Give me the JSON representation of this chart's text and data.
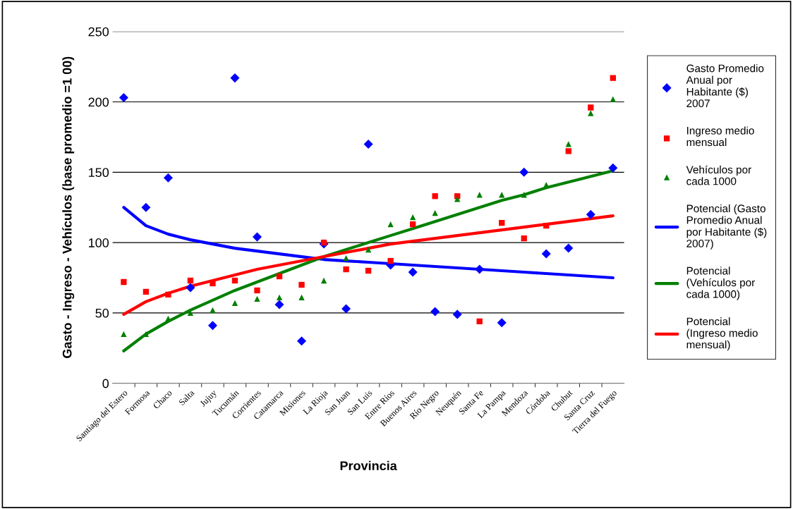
{
  "chart_data": {
    "type": "scatter",
    "xlabel": "Provincia",
    "ylabel": "Gasto - Ingreso - Vehículos (base promedio =1 00)",
    "categories": [
      "Santiago del Estero",
      "Formosa",
      "Chaco",
      "Salta",
      "Jujuy",
      "Tucumán",
      "Corrientes",
      "Catamarca",
      "Misiones",
      "La Rioja",
      "San Juan",
      "San Luis",
      "Entre Ríos",
      "Buenos Aires",
      "Río Negro",
      "Neuquén",
      "Santa Fe",
      "La Pampa",
      "Mendoza",
      "Córdoba",
      "Chubut",
      "Santa Cruz",
      "Tierra del Fuego"
    ],
    "ylim": [
      0,
      250
    ],
    "yticks": [
      0,
      50,
      100,
      150,
      200,
      250
    ],
    "grid": "y",
    "legend": "right",
    "series": [
      {
        "name": "Gasto Promedio Anual por Habitante ($) 2007",
        "marker": "diamond",
        "color": "#0000ff",
        "values": [
          203,
          125,
          146,
          68,
          41,
          217,
          104,
          56,
          30,
          99,
          53,
          170,
          84,
          79,
          51,
          49,
          81,
          43,
          150,
          92,
          96,
          120,
          153
        ]
      },
      {
        "name": "Ingreso medio mensual",
        "marker": "square",
        "color": "#ff0000",
        "values": [
          72,
          65,
          63,
          73,
          71,
          73,
          66,
          76,
          70,
          100,
          81,
          80,
          87,
          113,
          133,
          133,
          44,
          114,
          103,
          112,
          165,
          196,
          217
        ]
      },
      {
        "name": "Vehículos por cada 1000",
        "marker": "triangle",
        "color": "#008000",
        "values": [
          35,
          35,
          46,
          50,
          52,
          57,
          60,
          61,
          61,
          73,
          89,
          95,
          113,
          118,
          121,
          131,
          134,
          134,
          134,
          141,
          170,
          192,
          202
        ]
      },
      {
        "name": "Potencial (Gasto Promedio Anual por Habitante ($) 2007)",
        "type": "line",
        "color": "#0000ff",
        "values": [
          125,
          112,
          106,
          102,
          99,
          96,
          94,
          92,
          90,
          88,
          87,
          86,
          85,
          84,
          83,
          82,
          81,
          80,
          79,
          78,
          77,
          76,
          75
        ]
      },
      {
        "name": "Potencial (Vehículos por cada 1000)",
        "type": "line",
        "color": "#008000",
        "values": [
          23,
          35,
          44,
          52,
          59,
          66,
          72,
          78,
          84,
          90,
          95,
          100,
          105,
          110,
          115,
          120,
          125,
          130,
          134,
          139,
          143,
          147,
          151
        ]
      },
      {
        "name": "Potencial (Ingreso medio mensual)",
        "type": "line",
        "color": "#ff0000",
        "values": [
          49,
          58,
          64,
          69,
          73,
          77,
          81,
          84,
          87,
          90,
          93,
          96,
          99,
          101,
          103,
          105,
          107,
          109,
          111,
          113,
          115,
          117,
          119
        ]
      }
    ]
  }
}
